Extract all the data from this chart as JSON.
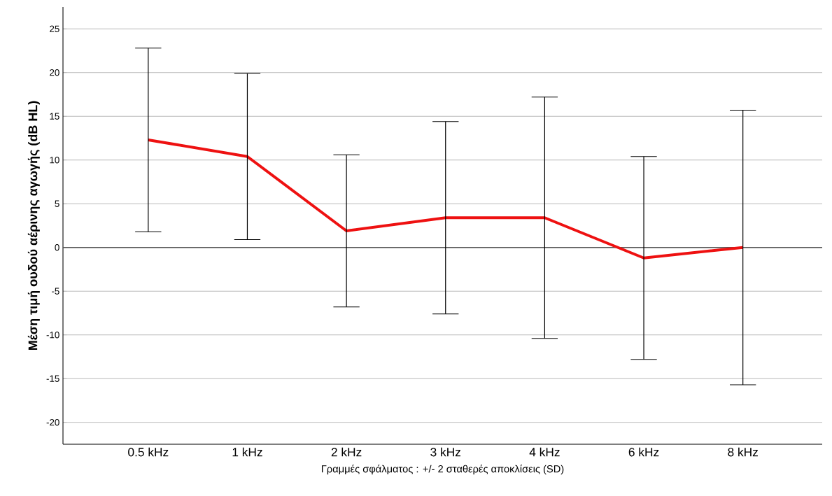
{
  "chart_data": {
    "type": "line",
    "xlabel": "Γραμμές σφάλματος : +/- 2 σταθερές αποκλίσεις (SD)",
    "ylabel": "Μέση τιμή ουδού αέρινης αγωγής (dB HL)",
    "categories": [
      "0.5 kHz",
      "1 kHz",
      "2 kHz",
      "3 kHz",
      "4 kHz",
      "6 kHz",
      "8 kHz"
    ],
    "values": [
      12.3,
      10.4,
      1.9,
      3.4,
      3.4,
      -1.2,
      0.0
    ],
    "errors": [
      10.5,
      9.5,
      8.7,
      11.0,
      13.8,
      11.6,
      15.7
    ],
    "color": "#ee1111",
    "ylim": [
      -22.5,
      27.5
    ],
    "yticks": [
      -20,
      -15,
      -10,
      -5,
      0,
      5,
      10,
      15,
      20,
      25
    ],
    "grid": "y",
    "ref_lines": [
      {
        "axis": "y",
        "value": 0,
        "color": "#555555"
      }
    ]
  }
}
